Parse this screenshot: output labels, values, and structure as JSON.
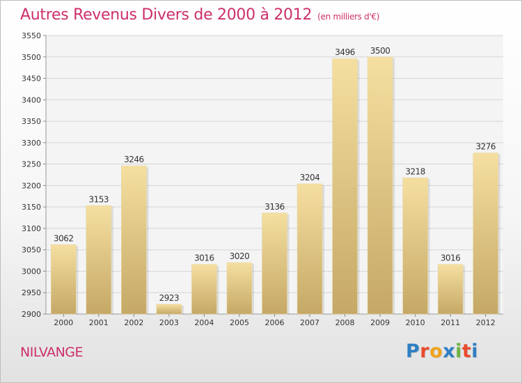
{
  "header": {
    "title": "Autres Revenus Divers de 2000 à 2012",
    "subtitle": "(en milliers d'€)"
  },
  "footer": {
    "town": "NILVANGE",
    "logo_letters": [
      "P",
      "r",
      "o",
      "x",
      "i",
      "t",
      "i"
    ],
    "logo_colors": [
      "#2f7fc4",
      "#e84a2c",
      "#f0a31c",
      "#2f7fc4",
      "#6cb33f",
      "#e84a2c",
      "#2f7fc4"
    ]
  },
  "colors": {
    "title": "#cc2f6b",
    "bar_light": "#f5dfa0",
    "bar_dark": "#c5a866",
    "grid": "#d5d5d5"
  },
  "chart_data": {
    "type": "bar",
    "categories": [
      "2000",
      "2001",
      "2002",
      "2003",
      "2004",
      "2005",
      "2006",
      "2007",
      "2008",
      "2009",
      "2010",
      "2011",
      "2012"
    ],
    "values": [
      3062,
      3153,
      3246,
      2923,
      3016,
      3020,
      3136,
      3204,
      3496,
      3500,
      3218,
      3016,
      3276
    ],
    "ylim": [
      2900,
      3550
    ],
    "yticks": [
      2900,
      2950,
      3000,
      3050,
      3100,
      3150,
      3200,
      3250,
      3300,
      3350,
      3400,
      3450,
      3500,
      3550
    ],
    "grid": true
  }
}
